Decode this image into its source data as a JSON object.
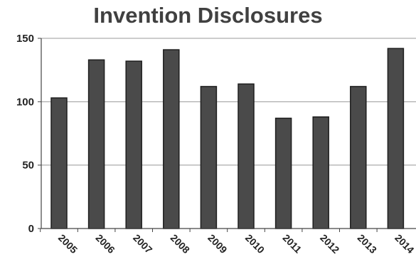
{
  "chart_data": {
    "type": "bar",
    "title": "Invention Disclosures",
    "categories": [
      "2005",
      "2006",
      "2007",
      "2008",
      "2009",
      "2010",
      "2011",
      "2012",
      "2013",
      "2014"
    ],
    "values": [
      103,
      133,
      132,
      141,
      112,
      114,
      87,
      88,
      112,
      142
    ],
    "ylim": [
      0,
      150
    ],
    "yticks": [
      "0",
      "50",
      "100",
      "150"
    ],
    "grid": true,
    "bar_color": "#4a4a4a",
    "xlabel": "",
    "ylabel": ""
  }
}
